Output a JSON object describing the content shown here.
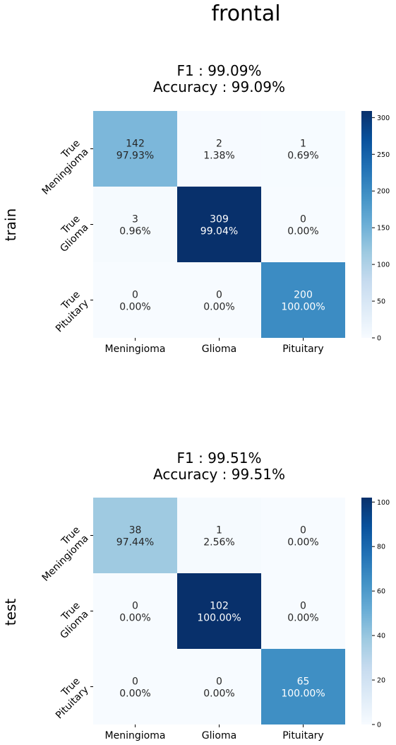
{
  "title": "frontal",
  "chart_data": [
    {
      "type": "heatmap",
      "row_label": "train",
      "title_lines": [
        "F1 : 99.09%",
        "Accuracy : 99.09%"
      ],
      "x_tick_labels": [
        "Meningioma",
        "Glioma",
        "Pituitary"
      ],
      "y_tick_labels": [
        [
          "True",
          "Meningioma"
        ],
        [
          "True",
          "Glioma"
        ],
        [
          "True",
          "Pituitary"
        ]
      ],
      "counts": [
        [
          142,
          2,
          1
        ],
        [
          3,
          309,
          0
        ],
        [
          0,
          0,
          200
        ]
      ],
      "percent_labels": [
        [
          "97.93%",
          "1.38%",
          "0.69%"
        ],
        [
          "0.96%",
          "99.04%",
          "0.00%"
        ],
        [
          "0.00%",
          "0.00%",
          "100.00%"
        ]
      ],
      "colorbar": {
        "min": 0,
        "max": 309,
        "ticks": [
          0,
          50,
          100,
          150,
          200,
          250,
          300
        ]
      },
      "colormap": "Blues"
    },
    {
      "type": "heatmap",
      "row_label": "test",
      "title_lines": [
        "F1 : 99.51%",
        "Accuracy : 99.51%"
      ],
      "x_tick_labels": [
        "Meningioma",
        "Glioma",
        "Pituitary"
      ],
      "y_tick_labels": [
        [
          "True",
          "Meningioma"
        ],
        [
          "True",
          "Glioma"
        ],
        [
          "True",
          "Pituitary"
        ]
      ],
      "counts": [
        [
          38,
          1,
          0
        ],
        [
          0,
          102,
          0
        ],
        [
          0,
          0,
          65
        ]
      ],
      "percent_labels": [
        [
          "97.44%",
          "2.56%",
          "0.00%"
        ],
        [
          "0.00%",
          "100.00%",
          "0.00%"
        ],
        [
          "0.00%",
          "0.00%",
          "100.00%"
        ]
      ],
      "colorbar": {
        "min": 0,
        "max": 102,
        "ticks": [
          0,
          20,
          40,
          60,
          80,
          100
        ]
      },
      "colormap": "Blues"
    }
  ]
}
